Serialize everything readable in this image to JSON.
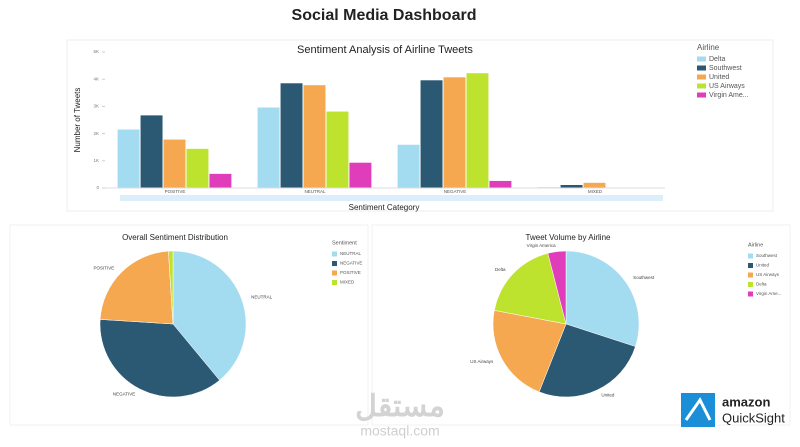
{
  "page": {
    "title": "Social Media Dashboard"
  },
  "watermark": {
    "arabic": "مستقل",
    "latin": "mostaql.com"
  },
  "logo": [
    "amazon",
    "QuickSight"
  ],
  "chart_data": [
    {
      "type": "bar",
      "title": "Sentiment Analysis of Airline Tweets",
      "x_label": "Sentiment Category",
      "y_label": "Number of Tweets",
      "legend_title": "Airline",
      "categories": [
        "POSITIVE",
        "NEUTRAL",
        "NEGATIVE",
        "MIXED"
      ],
      "series": [
        {
          "name": "Delta",
          "color": "#a3dcf0",
          "values": [
            2150,
            2960,
            1590,
            30
          ]
        },
        {
          "name": "Southwest",
          "color": "#2b5873",
          "values": [
            2670,
            3850,
            3960,
            110
          ]
        },
        {
          "name": "United",
          "color": "#f5a850",
          "values": [
            1780,
            3780,
            4070,
            190
          ]
        },
        {
          "name": "US Airways",
          "color": "#bde32f",
          "values": [
            1440,
            2810,
            4220,
            0
          ]
        },
        {
          "name": "Virgin Ame...",
          "color": "#e03dbb",
          "values": [
            520,
            930,
            260,
            0
          ]
        }
      ],
      "ylim": [
        0,
        5000
      ],
      "yticks": [
        0,
        {
          "value": 1000,
          "label": "1K"
        },
        {
          "value": 2000,
          "label": "2K"
        },
        {
          "value": 3000,
          "label": "3K"
        },
        {
          "value": 4000,
          "label": "4K"
        },
        {
          "value": 5000,
          "label": "5K"
        }
      ],
      "grid": false
    },
    {
      "type": "pie",
      "title": "Overall Sentiment Distribution",
      "legend_title": "Sentiment",
      "categories": [
        "NEUTRAL",
        "NEGATIVE",
        "POSITIVE",
        "MIXED"
      ],
      "slice_labels": [
        "NEUTRAL",
        "NEGATIVE",
        "POSITIVE",
        null
      ],
      "values": [
        39,
        37,
        23,
        1
      ],
      "colors": [
        "#a3dcf0",
        "#2b5873",
        "#f5a850",
        "#bde32f"
      ]
    },
    {
      "type": "pie",
      "title": "Tweet Volume by Airline",
      "legend_title": "Airline",
      "categories": [
        "Southwest",
        "United",
        "US Airways",
        "Delta",
        "Virgin Ame..."
      ],
      "slice_labels": [
        "Southwest",
        "United",
        "US Airways",
        "Delta",
        "Virgin America"
      ],
      "values": [
        30,
        26,
        22,
        18,
        4
      ],
      "colors": [
        "#a3dcf0",
        "#2b5873",
        "#f5a850",
        "#bde32f",
        "#e03dbb"
      ]
    }
  ]
}
